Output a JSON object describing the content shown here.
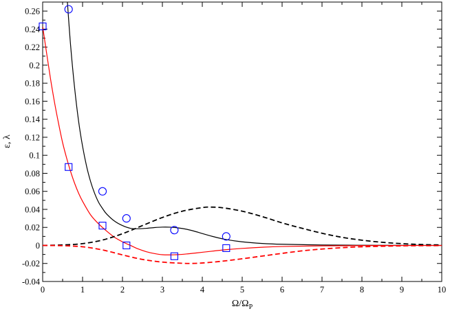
{
  "chart_data": {
    "type": "line",
    "title": "",
    "xlabel": "Ω/Ω",
    "xlabel_subscript": "P",
    "ylabel": "ε, λ",
    "xlim": [
      0,
      10
    ],
    "ylim": [
      -0.04,
      0.27
    ],
    "grid": false,
    "x_ticks": [
      "0",
      "1",
      "2",
      "3",
      "4",
      "5",
      "6",
      "7",
      "8",
      "9",
      "10"
    ],
    "y_ticks": [
      "-0.04",
      "-0.02",
      "0",
      "0.02",
      "0.04",
      "0.06",
      "0.08",
      "0.1",
      "0.12",
      "0.14",
      "0.16",
      "0.18",
      "0.2",
      "0.22",
      "0.24",
      "0.26"
    ],
    "series": [
      {
        "style": "solid",
        "color": "#000000",
        "x": [
          0.62,
          0.7,
          0.8,
          0.9,
          1.0,
          1.1,
          1.2,
          1.3,
          1.4,
          1.5,
          1.6,
          1.8,
          2.0,
          2.2,
          2.4,
          2.6,
          2.8,
          3.0,
          3.2,
          3.4,
          3.6,
          3.8,
          4.0,
          4.3,
          4.6,
          5.0,
          5.5,
          6.0,
          7.0,
          8.0,
          9.0,
          10.0
        ],
        "y": [
          0.27,
          0.222,
          0.175,
          0.138,
          0.11,
          0.088,
          0.071,
          0.058,
          0.048,
          0.041,
          0.035,
          0.027,
          0.022,
          0.019,
          0.0185,
          0.019,
          0.0198,
          0.0203,
          0.0202,
          0.0194,
          0.018,
          0.0158,
          0.0132,
          0.0095,
          0.0065,
          0.004,
          0.0022,
          0.0013,
          0.0005,
          0.0002,
          0.0001,
          0.0
        ]
      },
      {
        "style": "solid",
        "color": "#ff0000",
        "x": [
          0.0,
          0.1,
          0.2,
          0.3,
          0.4,
          0.5,
          0.6,
          0.7,
          0.8,
          0.9,
          1.0,
          1.2,
          1.4,
          1.6,
          1.8,
          2.0,
          2.2,
          2.4,
          2.6,
          2.8,
          3.0,
          3.2,
          3.4,
          3.6,
          3.8,
          4.0,
          4.3,
          4.6,
          5.0,
          5.5,
          6.0,
          7.0,
          8.0,
          9.0,
          10.0
        ],
        "y": [
          0.243,
          0.213,
          0.184,
          0.158,
          0.135,
          0.114,
          0.097,
          0.082,
          0.069,
          0.058,
          0.049,
          0.034,
          0.024,
          0.016,
          0.009,
          0.004,
          0.0,
          -0.004,
          -0.007,
          -0.009,
          -0.0103,
          -0.0105,
          -0.0102,
          -0.0095,
          -0.0086,
          -0.0076,
          -0.0061,
          -0.0047,
          -0.0033,
          -0.002,
          -0.0012,
          -0.0005,
          -0.0002,
          -0.0001,
          0.0
        ]
      },
      {
        "style": "dashed",
        "color": "#000000",
        "x": [
          0.0,
          0.5,
          1.0,
          1.5,
          2.0,
          2.5,
          3.0,
          3.5,
          4.0,
          4.2,
          4.5,
          5.0,
          5.5,
          6.0,
          6.5,
          7.0,
          7.5,
          8.0,
          8.5,
          9.0,
          9.5,
          10.0
        ],
        "y": [
          0.0,
          0.0005,
          0.002,
          0.006,
          0.013,
          0.022,
          0.031,
          0.038,
          0.042,
          0.0425,
          0.0418,
          0.038,
          0.032,
          0.025,
          0.019,
          0.0135,
          0.009,
          0.0058,
          0.0035,
          0.002,
          0.001,
          0.0005
        ]
      },
      {
        "style": "dashed",
        "color": "#ff0000",
        "x": [
          0.0,
          0.5,
          1.0,
          1.5,
          2.0,
          2.5,
          3.0,
          3.5,
          3.7,
          4.0,
          4.5,
          5.0,
          5.5,
          6.0,
          6.5,
          7.0,
          7.5,
          8.0,
          9.0,
          10.0
        ],
        "y": [
          0.0,
          -0.0003,
          -0.0015,
          -0.005,
          -0.0105,
          -0.0155,
          -0.0185,
          -0.0198,
          -0.02,
          -0.0195,
          -0.0175,
          -0.0148,
          -0.0118,
          -0.0088,
          -0.006,
          -0.004,
          -0.0025,
          -0.0015,
          -0.0005,
          -0.0002
        ]
      }
    ],
    "markers": [
      {
        "shape": "circle",
        "color": "#0000ff",
        "x": [
          0.65,
          1.5,
          2.1,
          3.3,
          4.6
        ],
        "y": [
          0.262,
          0.06,
          0.03,
          0.017,
          0.01
        ]
      },
      {
        "shape": "square",
        "color": "#0000ff",
        "x": [
          0.0,
          0.65,
          1.5,
          2.1,
          3.3,
          4.6
        ],
        "y": [
          0.243,
          0.087,
          0.022,
          0.0,
          -0.012,
          -0.003
        ]
      }
    ]
  }
}
